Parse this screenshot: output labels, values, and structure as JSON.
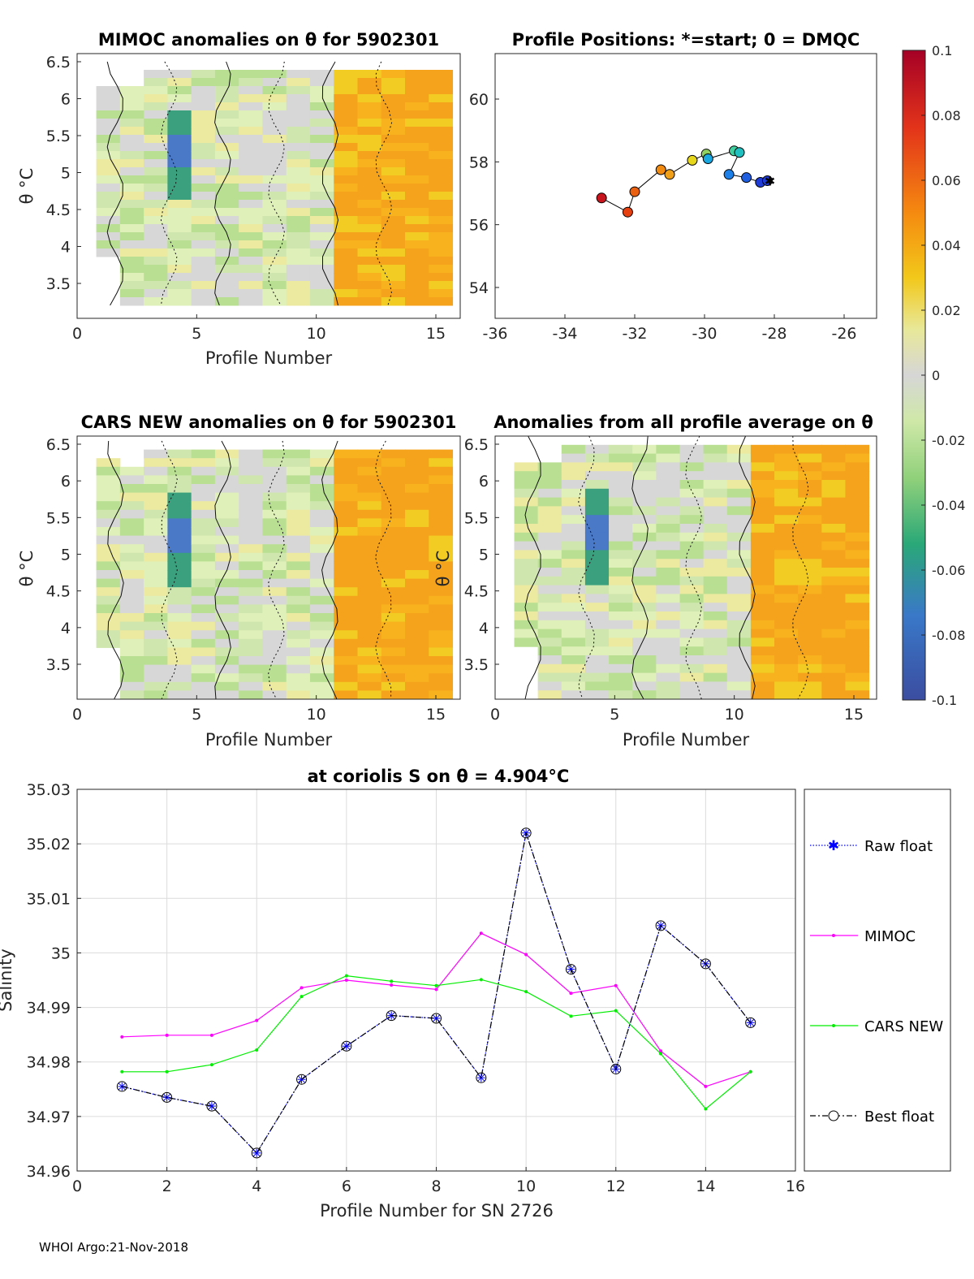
{
  "footer": "WHOI Argo:21-Nov-2018",
  "panels": {
    "mimoc": {
      "title": "MIMOC anomalies on θ  for 5902301",
      "ylabel": "θ °C",
      "xlabel": "Profile Number",
      "xticks": [
        "0",
        "5",
        "10",
        "15"
      ],
      "yticks": [
        "6.5",
        "6",
        "5.5",
        "5",
        "4.5",
        "4",
        "3.5"
      ]
    },
    "positions": {
      "title": "Profile Positions: *=start; 0 = DMQC",
      "xticks": [
        "-36",
        "-34",
        "-32",
        "-30",
        "-28",
        "-26"
      ],
      "yticks": [
        "60",
        "58",
        "56",
        "54"
      ],
      "track": [
        {
          "lon": -28.2,
          "lat": 57.4,
          "color": "#1f3dd6"
        },
        {
          "lon": -28.4,
          "lat": 57.35,
          "color": "#1f3dd6"
        },
        {
          "lon": -28.8,
          "lat": 57.5,
          "color": "#2060e0"
        },
        {
          "lon": -29.3,
          "lat": 57.6,
          "color": "#1c80e8"
        },
        {
          "lon": -29.0,
          "lat": 58.3,
          "color": "#20c0c0"
        },
        {
          "lon": -29.15,
          "lat": 58.35,
          "color": "#40d0a0"
        },
        {
          "lon": -29.9,
          "lat": 58.1,
          "color": "#1aa8e0"
        },
        {
          "lon": -29.95,
          "lat": 58.25,
          "color": "#90d060"
        },
        {
          "lon": -30.35,
          "lat": 58.05,
          "color": "#e6d61c"
        },
        {
          "lon": -31.0,
          "lat": 57.6,
          "color": "#f0a018"
        },
        {
          "lon": -31.25,
          "lat": 57.75,
          "color": "#f08a10"
        },
        {
          "lon": -32.0,
          "lat": 57.05,
          "color": "#e86010"
        },
        {
          "lon": -32.2,
          "lat": 56.4,
          "color": "#e64010"
        },
        {
          "lon": -32.95,
          "lat": 56.85,
          "color": "#c8141c"
        }
      ]
    },
    "cars": {
      "title": "CARS NEW anomalies on θ for 5902301",
      "ylabel": "θ °C",
      "xlabel": "Profile Number",
      "xticks": [
        "0",
        "5",
        "10",
        "15"
      ],
      "yticks": [
        "6.5",
        "6",
        "5.5",
        "5",
        "4.5",
        "4",
        "3.5"
      ]
    },
    "avg": {
      "title": "Anomalies from all profile average on θ",
      "ylabel": "θ °C",
      "xlabel": "Profile Number",
      "xticks": [
        "0",
        "5",
        "10",
        "15"
      ],
      "yticks": [
        "6.5",
        "6",
        "5.5",
        "5",
        "4.5",
        "4",
        "3.5"
      ]
    },
    "colorbar": {
      "ticks": [
        "0.1",
        "0.08",
        "0.06",
        "0.04",
        "0.02",
        "0",
        "-0.02",
        "-0.04",
        "-0.06",
        "-0.08",
        "-0.1"
      ]
    }
  },
  "chart_data": {
    "type": "line",
    "title": "at coriolis S on θ = 4.904°C",
    "xlabel": "Profile Number for SN 2726",
    "ylabel": "Salinity",
    "xlim": [
      0,
      16
    ],
    "ylim": [
      34.96,
      35.03
    ],
    "xticks": [
      "0",
      "2",
      "4",
      "6",
      "8",
      "10",
      "12",
      "14",
      "16"
    ],
    "yticks": [
      "35.03",
      "35.02",
      "35.01",
      "35",
      "34.99",
      "34.98",
      "34.97",
      "34.96"
    ],
    "x": [
      1,
      2,
      3,
      4,
      5,
      6,
      7,
      8,
      9,
      10,
      11,
      12,
      13,
      14,
      15
    ],
    "series": [
      {
        "name": "Raw float",
        "color": "#0000ff",
        "values": [
          34.9755,
          34.9735,
          34.9719,
          34.9633,
          34.9768,
          34.9829,
          34.9885,
          34.988,
          34.9771,
          35.022,
          34.997,
          34.9787,
          35.005,
          34.998,
          34.9872
        ]
      },
      {
        "name": "MIMOC",
        "color": "#ff00ff",
        "values": [
          34.9846,
          34.9849,
          34.9849,
          34.9876,
          34.9936,
          34.995,
          34.9941,
          34.9933,
          35.0036,
          34.9997,
          34.9926,
          34.994,
          34.982,
          34.9755,
          34.9782
        ]
      },
      {
        "name": "CARS NEW",
        "color": "#00ee00",
        "values": [
          34.9782,
          34.9782,
          34.9795,
          34.9822,
          34.992,
          34.9958,
          34.9948,
          34.994,
          34.9951,
          34.9929,
          34.9884,
          34.9894,
          34.9815,
          34.9714,
          34.9782
        ]
      },
      {
        "name": "Best float",
        "color": "#000000",
        "values": [
          34.9755,
          34.9735,
          34.9719,
          34.9633,
          34.9768,
          34.9829,
          34.9885,
          34.988,
          34.9771,
          35.022,
          34.997,
          34.9787,
          35.005,
          34.998,
          34.9872
        ]
      }
    ]
  }
}
